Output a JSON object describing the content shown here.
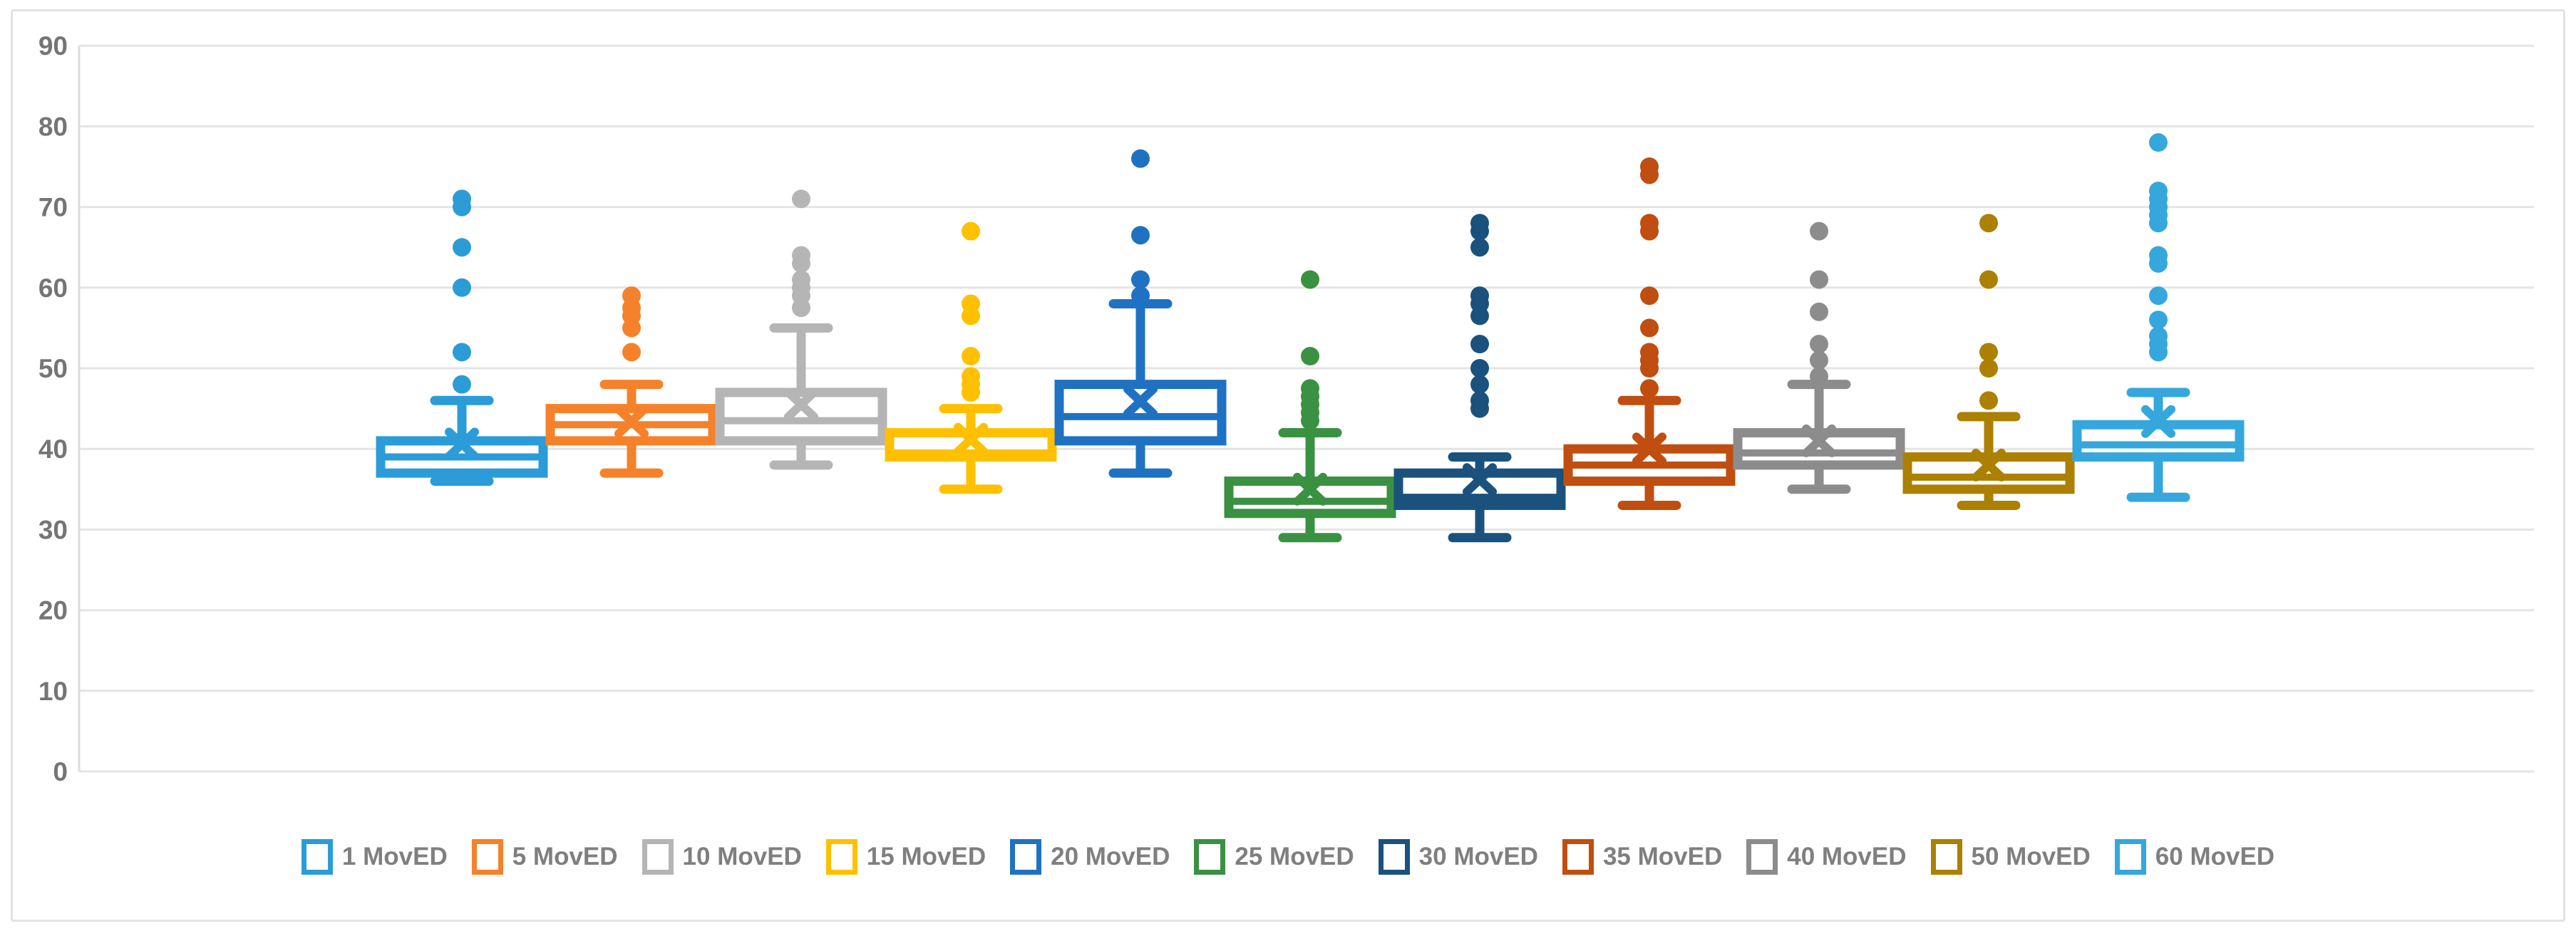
{
  "chart_data": {
    "type": "boxplot",
    "title": "",
    "xlabel": "",
    "ylabel": "",
    "ylim": [
      0,
      90
    ],
    "yticks": [
      0,
      10,
      20,
      30,
      40,
      50,
      60,
      70,
      80,
      90
    ],
    "grid": true,
    "legend_position": "bottom",
    "series": [
      {
        "name": "1 MovED",
        "color": "#2B9CD7",
        "low": 36,
        "q1": 37,
        "median": 39,
        "q3": 41,
        "high": 46,
        "mean": 40.6,
        "outliers": [
          48,
          52,
          60,
          65,
          70,
          71
        ]
      },
      {
        "name": "5 MovED",
        "color": "#F5822A",
        "color_note": "orange",
        "low": 37,
        "q1": 41,
        "median": 43,
        "q3": 45,
        "high": 48,
        "mean": 43.4,
        "outliers": [
          52,
          55,
          56.5,
          57.5,
          59
        ]
      },
      {
        "name": "10 MovED",
        "color": "#B5B5B5",
        "low": 38,
        "q1": 41,
        "median": 43.5,
        "q3": 47,
        "high": 55,
        "mean": 45.5,
        "outliers": [
          57.5,
          59,
          60,
          61,
          63,
          64,
          71
        ]
      },
      {
        "name": "15 MovED",
        "color": "#FFC000",
        "low": 35,
        "q1": 39,
        "median": 39.5,
        "q3": 42,
        "high": 45,
        "mean": 41.2,
        "outliers": [
          47,
          48,
          49,
          51.5,
          56.5,
          58,
          67
        ]
      },
      {
        "name": "20 MovED",
        "color": "#1F72C2",
        "low": 37,
        "q1": 41,
        "median": 44,
        "q3": 48,
        "high": 58,
        "mean": 45.9,
        "outliers": [
          59,
          61,
          66.5,
          76
        ]
      },
      {
        "name": "25 MovED",
        "color": "#3A9142",
        "low": 29,
        "q1": 32,
        "median": 33.5,
        "q3": 36,
        "high": 42,
        "mean": 35,
        "outliers": [
          43.5,
          44.5,
          45.5,
          46.5,
          47.5,
          51.5,
          61
        ]
      },
      {
        "name": "30 MovED",
        "color": "#1A527D",
        "low": 29,
        "q1": 33,
        "median": 34,
        "q3": 37,
        "high": 39,
        "mean": 36.2,
        "outliers": [
          45,
          46,
          48,
          50,
          53,
          56.5,
          58,
          59,
          65,
          67,
          68
        ]
      },
      {
        "name": "35 MovED",
        "color": "#BF4E10",
        "low": 33,
        "q1": 36,
        "median": 38,
        "q3": 40,
        "high": 46,
        "mean": 40,
        "outliers": [
          47.5,
          50,
          51,
          52,
          55,
          59,
          67,
          68,
          74,
          75
        ]
      },
      {
        "name": "40 MovED",
        "color": "#8C8C8C",
        "low": 35,
        "q1": 38,
        "median": 39.5,
        "q3": 42,
        "high": 48,
        "mean": 41,
        "outliers": [
          49,
          51,
          53,
          57,
          61,
          67
        ]
      },
      {
        "name": "50 MovED",
        "color": "#AC8000",
        "low": 33,
        "q1": 35,
        "median": 36.5,
        "q3": 39,
        "high": 44,
        "mean": 38,
        "outliers": [
          46,
          50,
          52,
          61,
          68
        ]
      },
      {
        "name": "60 MovED",
        "color": "#35A7DD",
        "low": 34,
        "q1": 39,
        "median": 40.5,
        "q3": 43,
        "high": 47,
        "mean": 43.4,
        "outliers": [
          52,
          53,
          54,
          56,
          59,
          63,
          64,
          68,
          69,
          70,
          71,
          72,
          78
        ]
      }
    ]
  },
  "styles": {
    "background": "#FFFFFF",
    "border_color": "#E2E2E2",
    "grid_color": "#E4E4E4",
    "axis_line_color": "#DCDCDC",
    "tick_label_color": "#757575",
    "legend_text_color": "#7F7F7F",
    "box_fill": "#FFFFFF"
  }
}
